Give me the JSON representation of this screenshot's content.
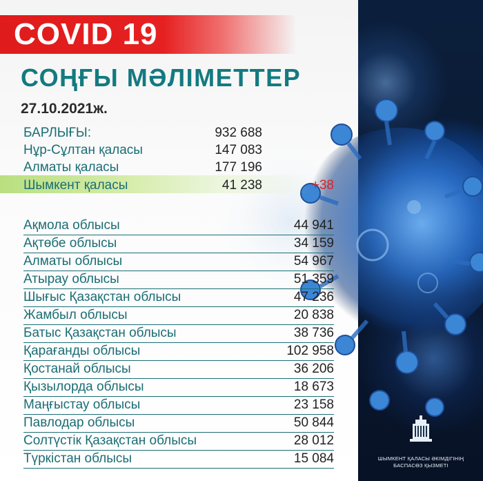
{
  "banner": {
    "title": "COVID 19"
  },
  "heading": "СОҢҒЫ МӘЛІМЕТТЕР",
  "date": "27.10.2021ж.",
  "summary": [
    {
      "label": "БАРЛЫҒЫ:",
      "value": "932 688"
    },
    {
      "label": "Нұр-Сұлтан қаласы",
      "value": "147 083"
    },
    {
      "label": "Алматы қаласы",
      "value": "177 196"
    },
    {
      "label": "Шымкент қаласы",
      "value": "41 238",
      "delta": "+38"
    }
  ],
  "regions": [
    {
      "label": "Ақмола облысы",
      "value": "44 941"
    },
    {
      "label": "Ақтөбе облысы",
      "value": "34 159"
    },
    {
      "label": "Алматы облысы",
      "value": "54 967"
    },
    {
      "label": "Атырау облысы",
      "value": "51 359"
    },
    {
      "label": "Шығыс Қазақстан облысы",
      "value": "47 236"
    },
    {
      "label": "Жамбыл облысы",
      "value": "20 838"
    },
    {
      "label": "Батыс Қазақстан облысы",
      "value": "38 736"
    },
    {
      "label": "Қарағанды облысы",
      "value": "102 958"
    },
    {
      "label": "Қостанай облысы",
      "value": "36 206"
    },
    {
      "label": "Қызылорда облысы",
      "value": "18 673"
    },
    {
      "label": "Маңғыстау облысы",
      "value": "23 158"
    },
    {
      "label": "Павлодар облысы",
      "value": "50 844"
    },
    {
      "label": "Солтүстік Қазақстан облысы",
      "value": "28 012"
    },
    {
      "label": "Түркістан облысы",
      "value": "15 084"
    }
  ],
  "logo": {
    "line1": "ШЫМКЕНТ ҚАЛАСЫ ӘКІМДІГІНІҢ",
    "line2": "БАСПАСӨЗ ҚЫЗМЕТІ",
    "icon": "government-building-icon"
  },
  "colors": {
    "banner": "#e01b1b",
    "heading": "#137a80",
    "highlight": "#b8df80",
    "delta": "#e02020"
  }
}
